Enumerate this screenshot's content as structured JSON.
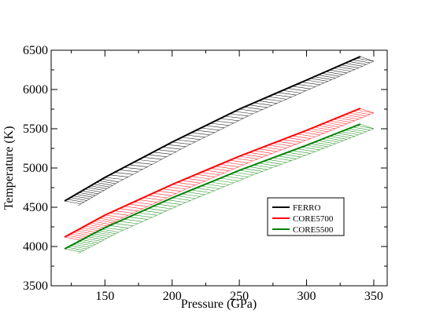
{
  "chart_data": {
    "type": "line",
    "title": "",
    "xlabel": "Pressure (GPa)",
    "ylabel": "Temperature (K)",
    "xlim": [
      110,
      360
    ],
    "ylim": [
      3500,
      6500
    ],
    "x_ticks": [
      150,
      200,
      250,
      300,
      350
    ],
    "y_ticks": [
      3500,
      4000,
      4500,
      5000,
      5500,
      6000,
      6500
    ],
    "x_tick_labels": [
      "150",
      "200",
      "250",
      "300",
      "350"
    ],
    "y_tick_labels": [
      "3500",
      "4000",
      "4500",
      "5000",
      "5500",
      "6000",
      "6500"
    ],
    "grid": false,
    "legend_position": "lower-right",
    "series": [
      {
        "name": "FERRO",
        "color": "#000000",
        "x": [
          120,
          150,
          200,
          250,
          300,
          340
        ],
        "y": [
          4580,
          4880,
          5330,
          5750,
          6120,
          6420
        ],
        "band_upper_x": [
          120,
          150,
          200,
          250,
          300,
          340
        ],
        "band_upper_y": [
          4580,
          4880,
          5330,
          5750,
          6120,
          6420
        ],
        "band_lower_x": [
          130,
          160,
          210,
          260,
          310,
          350
        ],
        "band_lower_y": [
          4580,
          4880,
          5330,
          5750,
          6120,
          6420
        ]
      },
      {
        "name": "CORE5700",
        "color": "#ff0000",
        "x": [
          120,
          150,
          200,
          250,
          300,
          340
        ],
        "y": [
          4120,
          4400,
          4790,
          5150,
          5480,
          5760
        ],
        "band_upper_x": [
          120,
          150,
          200,
          250,
          300,
          340
        ],
        "band_upper_y": [
          4120,
          4400,
          4790,
          5150,
          5480,
          5760
        ],
        "band_lower_x": [
          130,
          160,
          210,
          260,
          310,
          350
        ],
        "band_lower_y": [
          4120,
          4400,
          4790,
          5150,
          5480,
          5760
        ]
      },
      {
        "name": "CORE5500",
        "color": "#008000",
        "x": [
          120,
          150,
          200,
          250,
          300,
          340
        ],
        "y": [
          3970,
          4240,
          4620,
          4970,
          5290,
          5560
        ],
        "band_upper_x": [
          120,
          150,
          200,
          250,
          300,
          340
        ],
        "band_upper_y": [
          3970,
          4240,
          4620,
          4970,
          5290,
          5560
        ],
        "band_lower_x": [
          130,
          160,
          210,
          260,
          310,
          350
        ],
        "band_lower_y": [
          3970,
          4240,
          4620,
          4970,
          5290,
          5560
        ]
      }
    ]
  }
}
